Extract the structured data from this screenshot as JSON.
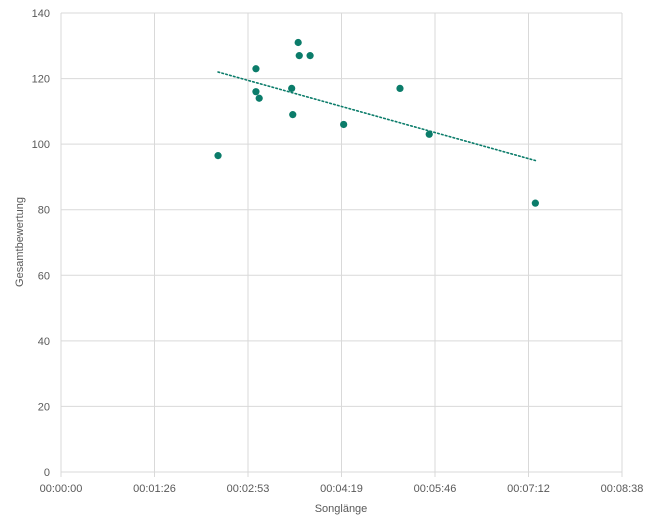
{
  "chart_data": {
    "type": "scatter",
    "title": "",
    "xlabel": "Songlänge",
    "ylabel": "Gesamtbewertung",
    "x_ticks": [
      "00:00:00",
      "00:01:26",
      "00:02:53",
      "00:04:19",
      "00:05:46",
      "00:07:12",
      "00:08:38"
    ],
    "y_ticks": [
      "0",
      "20",
      "40",
      "60",
      "80",
      "100",
      "120",
      "140"
    ],
    "xlim_seconds": [
      0,
      518
    ],
    "ylim": [
      0,
      140
    ],
    "grid": true,
    "legend": "none",
    "colors": {
      "points": "#0B7C6A",
      "trendline": "#0B7C6A",
      "grid": "#D9D9D9",
      "text": "#595959"
    },
    "points": [
      {
        "x": "00:02:25",
        "y": 96.5
      },
      {
        "x": "00:03:00",
        "y": 123
      },
      {
        "x": "00:03:00",
        "y": 116
      },
      {
        "x": "00:03:03",
        "y": 114
      },
      {
        "x": "00:03:33",
        "y": 117
      },
      {
        "x": "00:03:34",
        "y": 109
      },
      {
        "x": "00:03:39",
        "y": 131
      },
      {
        "x": "00:03:40",
        "y": 127
      },
      {
        "x": "00:03:50",
        "y": 127
      },
      {
        "x": "00:04:21",
        "y": 106
      },
      {
        "x": "00:05:13",
        "y": 117
      },
      {
        "x": "00:05:40",
        "y": 103
      },
      {
        "x": "00:07:18",
        "y": 82
      }
    ],
    "trendline": {
      "type": "linear",
      "style": "dotted",
      "from": {
        "x": "00:02:25",
        "y": 122
      },
      "to": {
        "x": "00:07:18",
        "y": 95
      }
    }
  }
}
